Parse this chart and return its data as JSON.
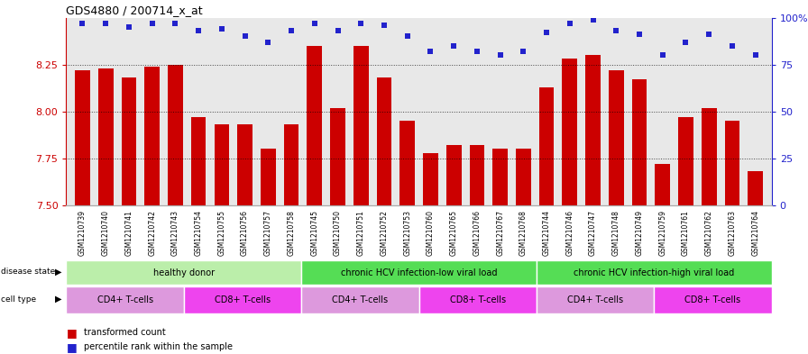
{
  "title": "GDS4880 / 200714_x_at",
  "samples": [
    "GSM1210739",
    "GSM1210740",
    "GSM1210741",
    "GSM1210742",
    "GSM1210743",
    "GSM1210754",
    "GSM1210755",
    "GSM1210756",
    "GSM1210757",
    "GSM1210758",
    "GSM1210745",
    "GSM1210750",
    "GSM1210751",
    "GSM1210752",
    "GSM1210753",
    "GSM1210760",
    "GSM1210765",
    "GSM1210766",
    "GSM1210767",
    "GSM1210768",
    "GSM1210744",
    "GSM1210746",
    "GSM1210747",
    "GSM1210748",
    "GSM1210749",
    "GSM1210759",
    "GSM1210761",
    "GSM1210762",
    "GSM1210763",
    "GSM1210764"
  ],
  "transformed_count": [
    8.22,
    8.23,
    8.18,
    8.24,
    8.25,
    7.97,
    7.93,
    7.93,
    7.8,
    7.93,
    8.35,
    8.02,
    8.35,
    8.18,
    7.95,
    7.78,
    7.82,
    7.82,
    7.8,
    7.8,
    8.13,
    8.28,
    8.3,
    8.22,
    8.17,
    7.72,
    7.97,
    8.02,
    7.95,
    7.68
  ],
  "percentile_rank": [
    97,
    97,
    95,
    97,
    97,
    93,
    94,
    90,
    87,
    93,
    97,
    93,
    97,
    96,
    90,
    82,
    85,
    82,
    80,
    82,
    92,
    97,
    99,
    93,
    91,
    80,
    87,
    91,
    85,
    80
  ],
  "ylim_left": [
    7.5,
    8.5
  ],
  "ylim_right": [
    0,
    100
  ],
  "yticks_left": [
    7.5,
    7.75,
    8.0,
    8.25
  ],
  "yticks_right": [
    0,
    25,
    50,
    75,
    100
  ],
  "bar_color": "#cc0000",
  "dot_color": "#2222cc",
  "plot_bg": "#e8e8e8",
  "xtick_bg": "#d8d8d8",
  "disease_states": [
    {
      "label": "healthy donor",
      "start": 0,
      "end": 9,
      "color": "#bbeeaa"
    },
    {
      "label": "chronic HCV infection-low viral load",
      "start": 10,
      "end": 19,
      "color": "#55dd55"
    },
    {
      "label": "chronic HCV infection-high viral load",
      "start": 20,
      "end": 29,
      "color": "#55dd55"
    }
  ],
  "cell_types": [
    {
      "label": "CD4+ T-cells",
      "start": 0,
      "end": 4,
      "color": "#dd99dd"
    },
    {
      "label": "CD8+ T-cells",
      "start": 5,
      "end": 9,
      "color": "#ee44ee"
    },
    {
      "label": "CD4+ T-cells",
      "start": 10,
      "end": 14,
      "color": "#dd99dd"
    },
    {
      "label": "CD8+ T-cells",
      "start": 15,
      "end": 19,
      "color": "#ee44ee"
    },
    {
      "label": "CD4+ T-cells",
      "start": 20,
      "end": 24,
      "color": "#dd99dd"
    },
    {
      "label": "CD8+ T-cells",
      "start": 25,
      "end": 29,
      "color": "#ee44ee"
    }
  ]
}
